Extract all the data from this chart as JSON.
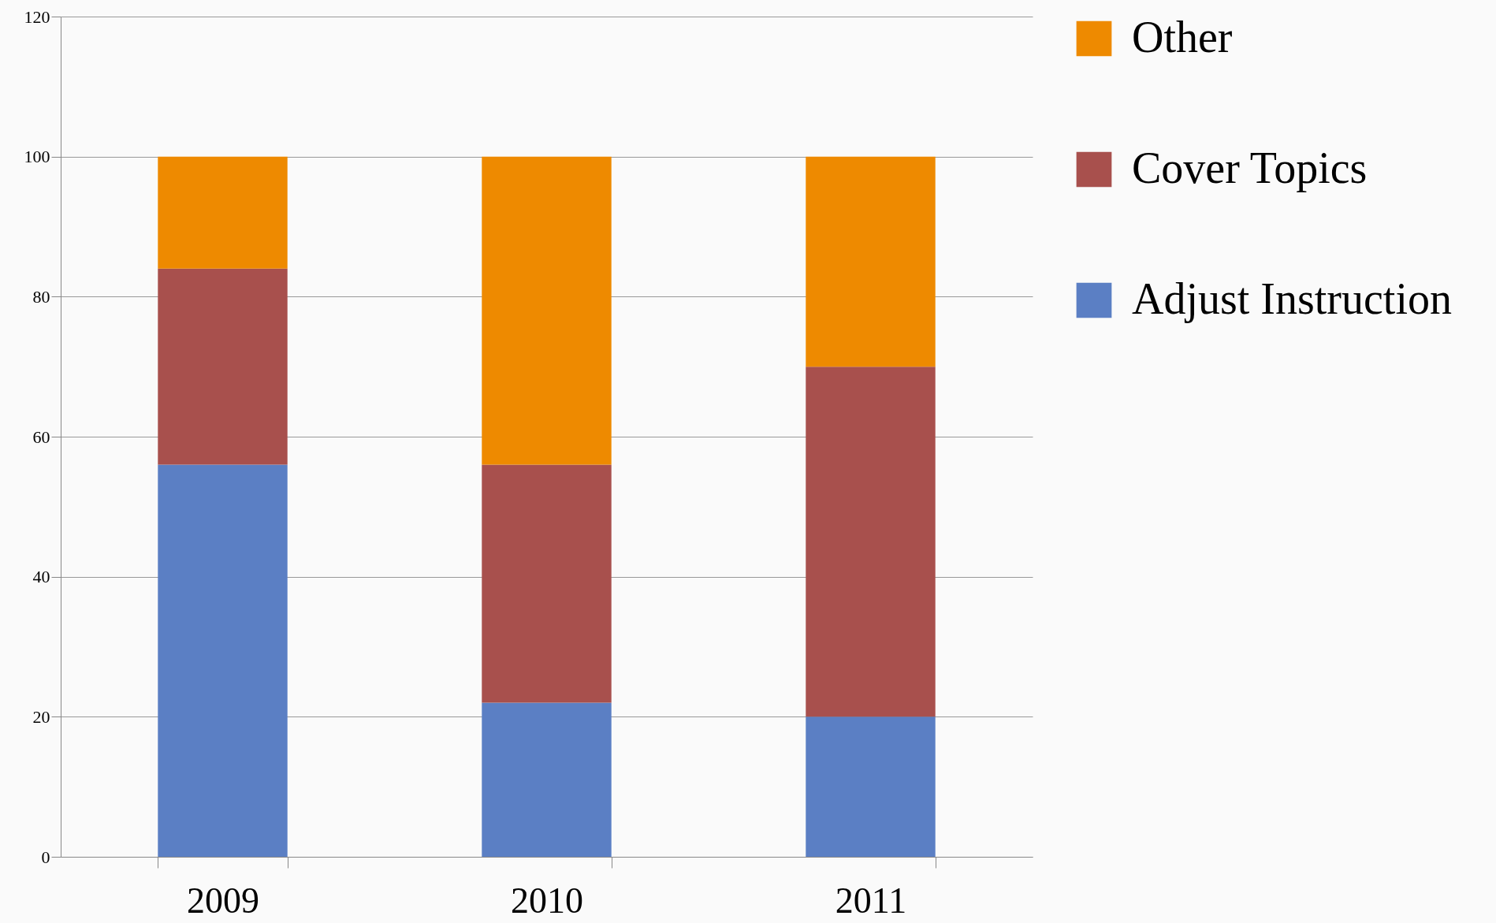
{
  "chart_data": {
    "type": "bar",
    "stacked": true,
    "categories": [
      "2009",
      "2010",
      "2011"
    ],
    "series": [
      {
        "name": "Adjust Instruction",
        "color": "#5b7fc4",
        "values": [
          56,
          22,
          20
        ]
      },
      {
        "name": "Cover Topics",
        "color": "#a8504d",
        "values": [
          28,
          34,
          50
        ]
      },
      {
        "name": "Other",
        "color": "#ee8a00",
        "values": [
          16,
          44,
          30
        ]
      }
    ],
    "ylim": [
      0,
      120
    ],
    "yticks": [
      0,
      20,
      40,
      60,
      80,
      100,
      120
    ],
    "grid": "y",
    "legend": "right"
  }
}
